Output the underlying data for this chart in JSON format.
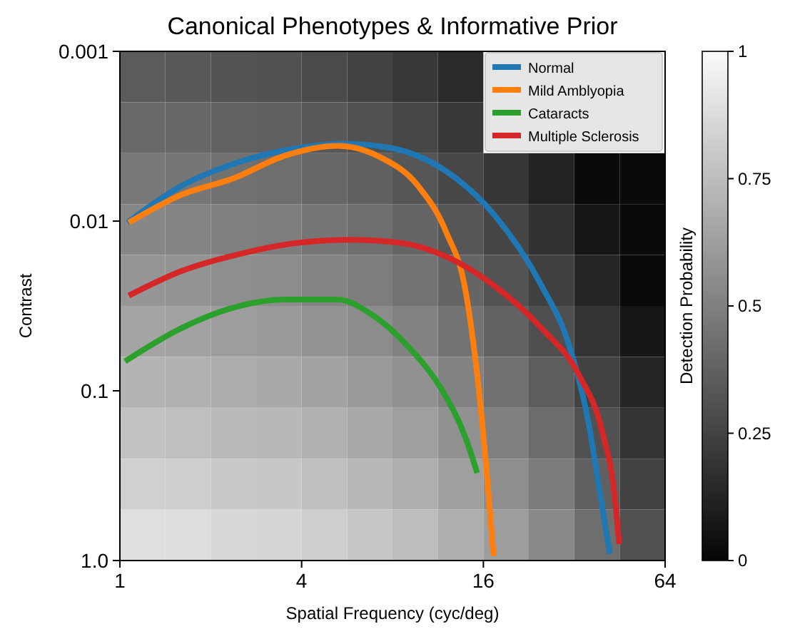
{
  "chart_data": [
    {
      "type": "heatmap",
      "clabel": "Detection Probability",
      "clim": [
        0,
        1
      ],
      "cticks": [
        0,
        0.25,
        0.5,
        0.75,
        1
      ],
      "categories": [
        null,
        null,
        null,
        null,
        null,
        null,
        null,
        null,
        null,
        null,
        null,
        null
      ],
      "y_categories": [
        null,
        null,
        null,
        null,
        null,
        null,
        null,
        null,
        null,
        null
      ],
      "cells": [
        [
          0.35,
          0.34,
          0.32,
          0.31,
          0.28,
          0.25,
          0.21,
          0.15,
          null,
          null,
          null,
          null
        ],
        [
          0.41,
          0.4,
          0.38,
          0.37,
          0.34,
          0.31,
          0.27,
          0.21,
          null,
          null,
          null,
          null
        ],
        [
          0.47,
          0.46,
          0.44,
          0.43,
          0.4,
          0.37,
          0.33,
          0.27,
          0.2,
          0.12,
          0.02,
          0.02
        ],
        [
          0.53,
          0.52,
          0.5,
          0.49,
          0.46,
          0.43,
          0.39,
          0.33,
          0.26,
          0.18,
          0.07,
          0.02
        ],
        [
          0.59,
          0.58,
          0.56,
          0.55,
          0.52,
          0.49,
          0.45,
          0.39,
          0.32,
          0.24,
          0.13,
          0.02
        ],
        [
          0.65,
          0.64,
          0.62,
          0.61,
          0.58,
          0.55,
          0.51,
          0.45,
          0.38,
          0.3,
          0.19,
          0.07
        ],
        [
          0.71,
          0.7,
          0.68,
          0.67,
          0.64,
          0.61,
          0.57,
          0.51,
          0.44,
          0.36,
          0.25,
          0.13
        ],
        [
          0.77,
          0.76,
          0.74,
          0.73,
          0.7,
          0.67,
          0.63,
          0.57,
          0.5,
          0.42,
          0.31,
          0.19
        ],
        [
          0.83,
          0.82,
          0.8,
          0.79,
          0.76,
          0.73,
          0.69,
          0.63,
          0.56,
          0.48,
          0.37,
          0.25
        ],
        [
          0.89,
          0.88,
          0.86,
          0.85,
          0.82,
          0.79,
          0.75,
          0.69,
          0.62,
          0.54,
          0.43,
          0.31
        ]
      ]
    },
    {
      "type": "line",
      "title": "Canonical Phenotypes & Informative Prior",
      "xlabel": "Spatial Frequency (cyc/deg)",
      "ylabel": "Contrast",
      "log": "xy",
      "xlim": [
        1,
        64
      ],
      "xticks": [
        1,
        4,
        16,
        64
      ],
      "ylim": [
        1,
        0.001
      ],
      "yticks": [
        {
          "value": 1,
          "label": "1.0"
        },
        0.1,
        0.01,
        0.001
      ],
      "legend": "top right",
      "series": [
        {
          "name": "Normal",
          "color": "#1f77b4",
          "x": [
            1.06,
            1.6,
            2.47,
            3.94,
            5.46,
            7.83,
            12.07,
            17.3,
            24.9,
            30.9,
            35.7,
            39.0,
            42.0
          ],
          "values": [
            0.0102,
            0.0062,
            0.0045,
            0.0037,
            0.0035,
            0.0037,
            0.0051,
            0.0091,
            0.0239,
            0.0552,
            0.155,
            0.408,
            0.914
          ]
        },
        {
          "name": "Mild Amblyopia",
          "color": "#ff7f0e",
          "x": [
            1.07,
            1.6,
            2.38,
            3.54,
            5.26,
            7.28,
            9.72,
            12.07,
            13.95,
            15.27,
            16.4,
            17.3
          ],
          "values": [
            0.0102,
            0.007,
            0.0056,
            0.0041,
            0.0036,
            0.0042,
            0.0062,
            0.0117,
            0.0255,
            0.081,
            0.295,
            0.94
          ]
        },
        {
          "name": "Cataracts",
          "color": "#2ca02c",
          "x": [
            1.04,
            1.6,
            2.29,
            3.54,
            5.26,
            6.78,
            9.04,
            11.65,
            13.95,
            15.27
          ],
          "values": [
            0.067,
            0.0427,
            0.033,
            0.029,
            0.029,
            0.0352,
            0.0552,
            0.0986,
            0.188,
            0.305
          ]
        },
        {
          "name": "Multiple Sclerosis",
          "color": "#d62728",
          "x": [
            1.07,
            1.6,
            2.47,
            3.94,
            5.86,
            8.41,
            12.07,
            17.3,
            24.9,
            33.2,
            39.7,
            43.5,
            45.1
          ],
          "values": [
            0.0275,
            0.0197,
            0.0157,
            0.0134,
            0.0129,
            0.0134,
            0.0162,
            0.0239,
            0.0427,
            0.081,
            0.176,
            0.408,
            0.8
          ]
        }
      ]
    }
  ]
}
